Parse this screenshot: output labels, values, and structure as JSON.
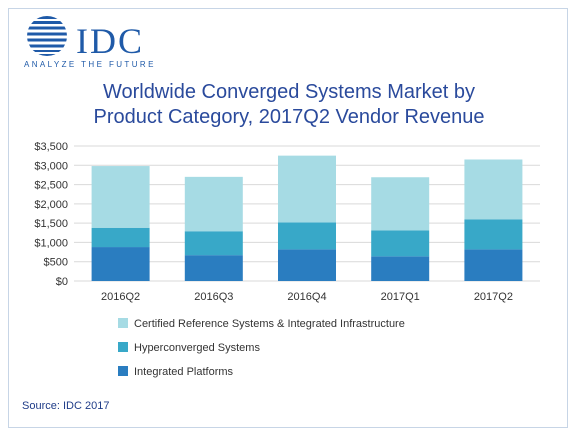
{
  "logo": {
    "name": "IDC",
    "tagline": "ANALYZE THE FUTURE"
  },
  "title": [
    "Worldwide Converged Systems Market by",
    "Product Category, 2017Q2 Vendor Revenue"
  ],
  "source": "Source: IDC 2017",
  "colors": {
    "integrated": "#2a7dc0",
    "hyperconverged": "#38a8c8",
    "certified": "#a6dbe4",
    "grid": "#d9d9d9",
    "axis_text": "#333333"
  },
  "chart_data": {
    "type": "bar",
    "stacked": true,
    "categories": [
      "2016Q2",
      "2016Q3",
      "2016Q4",
      "2017Q1",
      "2017Q2"
    ],
    "series": [
      {
        "name": "Integrated Platforms",
        "values": [
          880,
          670,
          820,
          640,
          820
        ],
        "color": "#2a7dc0"
      },
      {
        "name": "Hyperconverged Systems",
        "values": [
          500,
          620,
          700,
          670,
          780
        ],
        "color": "#38a8c8"
      },
      {
        "name": "Certified Reference Systems & Integrated Infrastructure",
        "values": [
          1600,
          1410,
          1730,
          1380,
          1550
        ],
        "color": "#a6dbe4"
      }
    ],
    "ylim": [
      0,
      3500
    ],
    "yticks": [
      "$0",
      "$500",
      "$1,000",
      "$1,500",
      "$2,000",
      "$2,500",
      "$3,000",
      "$3,500"
    ],
    "ytick_values": [
      0,
      500,
      1000,
      1500,
      2000,
      2500,
      3000,
      3500
    ],
    "grid": true,
    "legend_placement": "bottom"
  }
}
